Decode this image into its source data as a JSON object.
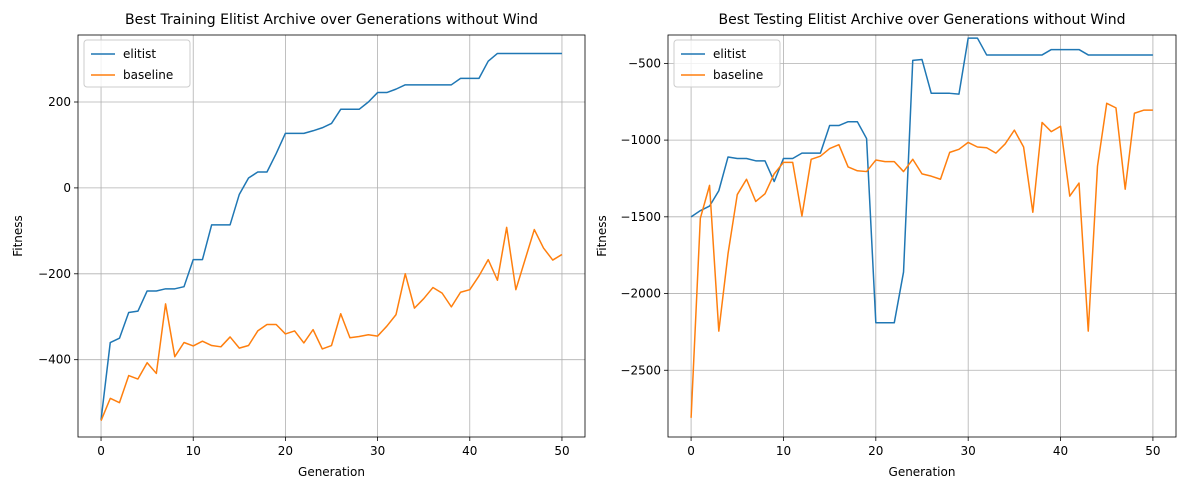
{
  "chart_data": [
    {
      "type": "line",
      "title": "Best Training Elitist Archive over Generations without Wind",
      "xlabel": "Generation",
      "ylabel": "Fitness",
      "xlim": [
        -2.5,
        52.5
      ],
      "ylim": [
        -580,
        356
      ],
      "xticks": [
        0,
        10,
        20,
        30,
        40,
        50
      ],
      "yticks": [
        -400,
        -200,
        0,
        200
      ],
      "grid": true,
      "legend": "top-left",
      "x": [
        0,
        1,
        2,
        3,
        4,
        5,
        6,
        7,
        8,
        9,
        10,
        11,
        12,
        13,
        14,
        15,
        16,
        17,
        18,
        19,
        20,
        21,
        22,
        23,
        24,
        25,
        26,
        27,
        28,
        29,
        30,
        31,
        32,
        33,
        34,
        35,
        36,
        37,
        38,
        39,
        40,
        41,
        42,
        43,
        44,
        45,
        46,
        47,
        48,
        49,
        50
      ],
      "series": [
        {
          "name": "elitist",
          "color": "#1f77b4",
          "values": [
            -540,
            -360,
            -350,
            -290,
            -287,
            -240,
            -240,
            -235,
            -235,
            -230,
            -167,
            -167,
            -86,
            -86,
            -86,
            -15,
            23,
            37,
            37,
            80,
            127,
            127,
            127,
            133,
            140,
            150,
            183,
            183,
            183,
            200,
            222,
            222,
            230,
            240,
            240,
            240,
            240,
            240,
            240,
            255,
            255,
            255,
            295,
            313,
            313,
            313,
            313,
            313,
            313,
            313,
            313
          ]
        },
        {
          "name": "baseline",
          "color": "#ff7f0e",
          "values": [
            -542,
            -490,
            -500,
            -437,
            -445,
            -407,
            -432,
            -270,
            -393,
            -360,
            -368,
            -357,
            -367,
            -370,
            -347,
            -373,
            -367,
            -333,
            -318,
            -318,
            -340,
            -333,
            -361,
            -330,
            -375,
            -367,
            -293,
            -349,
            -346,
            -342,
            -345,
            -322,
            -295,
            -200,
            -280,
            -258,
            -232,
            -245,
            -277,
            -243,
            -237,
            -205,
            -167,
            -215,
            -92,
            -237,
            -167,
            -97,
            -140,
            -168,
            -155
          ]
        }
      ]
    },
    {
      "type": "line",
      "title": "Best Testing Elitist Archive over Generations without Wind",
      "xlabel": "Generation",
      "ylabel": "Fitness",
      "xlim": [
        -2.5,
        52.5
      ],
      "ylim": [
        -2935,
        -315
      ],
      "xticks": [
        0,
        10,
        20,
        30,
        40,
        50
      ],
      "yticks": [
        -2500,
        -2000,
        -1500,
        -1000,
        -500
      ],
      "grid": true,
      "legend": "top-left",
      "x": [
        0,
        1,
        2,
        3,
        4,
        5,
        6,
        7,
        8,
        9,
        10,
        11,
        12,
        13,
        14,
        15,
        16,
        17,
        18,
        19,
        20,
        21,
        22,
        23,
        24,
        25,
        26,
        27,
        28,
        29,
        30,
        31,
        32,
        33,
        34,
        35,
        36,
        37,
        38,
        39,
        40,
        41,
        42,
        43,
        44,
        45,
        46,
        47,
        48,
        49,
        50
      ],
      "series": [
        {
          "name": "elitist",
          "color": "#1f77b4",
          "values": [
            -1500,
            -1460,
            -1430,
            -1330,
            -1110,
            -1120,
            -1120,
            -1135,
            -1135,
            -1270,
            -1120,
            -1120,
            -1085,
            -1085,
            -1085,
            -905,
            -905,
            -880,
            -880,
            -990,
            -2190,
            -2190,
            -2190,
            -1860,
            -480,
            -475,
            -695,
            -695,
            -695,
            -700,
            -335,
            -335,
            -445,
            -445,
            -445,
            -445,
            -445,
            -445,
            -445,
            -410,
            -410,
            -410,
            -410,
            -445,
            -445,
            -445,
            -445,
            -445,
            -445,
            -445,
            -445
          ]
        },
        {
          "name": "baseline",
          "color": "#ff7f0e",
          "values": [
            -2810,
            -1510,
            -1295,
            -2245,
            -1740,
            -1355,
            -1255,
            -1400,
            -1350,
            -1220,
            -1145,
            -1145,
            -1495,
            -1125,
            -1105,
            -1055,
            -1030,
            -1175,
            -1200,
            -1205,
            -1130,
            -1140,
            -1140,
            -1205,
            -1125,
            -1220,
            -1235,
            -1255,
            -1080,
            -1060,
            -1015,
            -1045,
            -1050,
            -1085,
            -1025,
            -935,
            -1045,
            -1470,
            -885,
            -945,
            -910,
            -1365,
            -1280,
            -2245,
            -1170,
            -760,
            -790,
            -1320,
            -825,
            -805,
            -805
          ]
        }
      ]
    }
  ]
}
